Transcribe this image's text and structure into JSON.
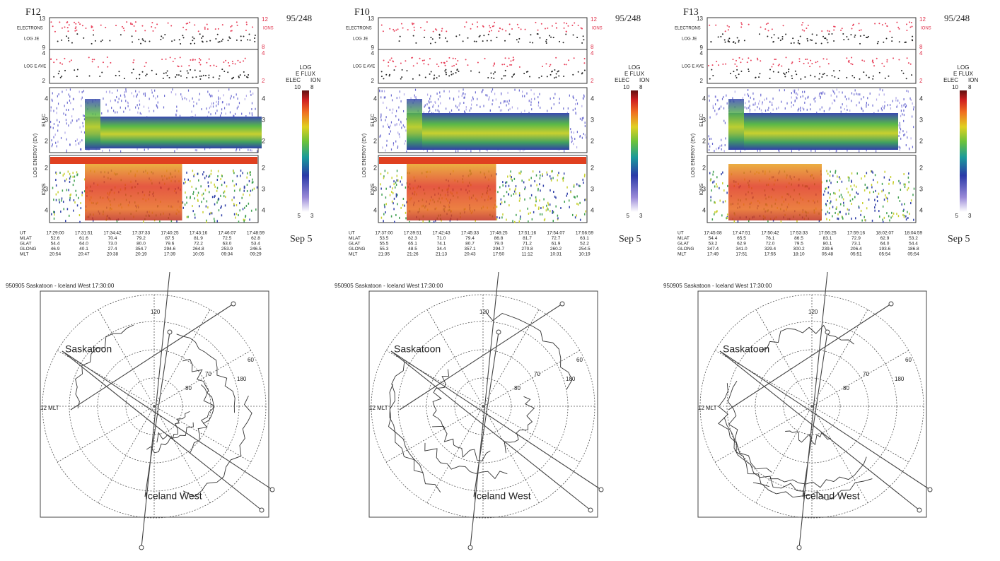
{
  "panels": [
    {
      "satellite": "F12",
      "day": "95/248",
      "date": "Sep 5",
      "flux": {
        "electrons": "ELECTRONS",
        "ions": "IONS",
        "log_je": "LOG JE",
        "log_e_ave": "LOG E AVE",
        "left_ticks": [
          "13",
          "9",
          "4",
          "2"
        ],
        "right_ticks": [
          "12",
          "8",
          "4",
          "2"
        ]
      },
      "spectrogram": {
        "axis_label": "LOG ENERGY (EV)",
        "elec": "ELEC",
        "ions": "IONS",
        "elec_ticks": [
          "4",
          "3",
          "2"
        ],
        "ion_ticks": [
          "2",
          "3",
          "4"
        ]
      },
      "colorbar": {
        "title": [
          "LOG",
          "E FLUX"
        ],
        "elec": "ELEC",
        "ion": "ION",
        "elec_range": [
          "10",
          "5"
        ],
        "ion_range": [
          "8",
          "3"
        ]
      },
      "table": {
        "rows": [
          {
            "label": "UT",
            "values": [
              "17:29:00",
              "17:31:51",
              "17:34:42",
              "17:37:33",
              "17:40:25",
              "17:43:16",
              "17:46:07",
              "17:48:59"
            ]
          },
          {
            "label": "MLAT",
            "values": [
              "52.6",
              "61.6",
              "70.4",
              "79.2",
              "87.5",
              "81.9",
              "72.5",
              "62.8"
            ]
          },
          {
            "label": "GLAT",
            "values": [
              "54.4",
              "64.0",
              "73.0",
              "80.0",
              "79.6",
              "72.2",
              "63.0",
              "53.4"
            ]
          },
          {
            "label": "GLONG",
            "values": [
              "46.9",
              "40.1",
              "27.4",
              "354.7",
              "294.6",
              "264.8",
              "253.9",
              "246.5"
            ]
          },
          {
            "label": "MLT",
            "values": [
              "20:54",
              "20:47",
              "20:38",
              "20:19",
              "17:39",
              "10:05",
              "09:34",
              "09:29"
            ]
          }
        ]
      },
      "map": {
        "title": "950905 Saskatoon - Iceland West 17:30:00",
        "start": "Saskatoon",
        "end": "Iceland West",
        "mlt": "12 MLT",
        "labels": [
          "120",
          "180",
          "60",
          "70",
          "80"
        ]
      }
    },
    {
      "satellite": "F10",
      "day": "95/248",
      "date": "Sep 5",
      "flux": {
        "electrons": "ELECTRONS",
        "ions": "IONS",
        "log_je": "LOG JE",
        "log_e_ave": "LOG E AVE",
        "left_ticks": [
          "13",
          "9",
          "4",
          "2"
        ],
        "right_ticks": [
          "12",
          "8",
          "4",
          "2"
        ]
      },
      "spectrogram": {
        "axis_label": "LOG ENERGY (EV)",
        "elec": "ELEC",
        "ions": "IONS",
        "elec_ticks": [
          "4",
          "3",
          "2"
        ],
        "ion_ticks": [
          "2",
          "3",
          "4"
        ]
      },
      "colorbar": {
        "title": [
          "LOG",
          "E FLUX"
        ],
        "elec": "ELEC",
        "ion": "ION",
        "elec_range": [
          "10",
          "5"
        ],
        "ion_range": [
          "8",
          "3"
        ]
      },
      "table": {
        "rows": [
          {
            "label": "UT",
            "values": [
              "17:37:00",
              "17:39:51",
              "17:42:43",
              "17:45:33",
              "17:48:25",
              "17:51:16",
              "17:54:07",
              "17:56:59"
            ]
          },
          {
            "label": "MLAT",
            "values": [
              "53.5",
              "62.3",
              "71.0",
              "79.4",
              "86.8",
              "81.7",
              "72.7",
              "63.1"
            ]
          },
          {
            "label": "GLAT",
            "values": [
              "55.5",
              "65.1",
              "74.1",
              "80.7",
              "79.0",
              "71.2",
              "61.9",
              "52.2"
            ]
          },
          {
            "label": "GLONG",
            "values": [
              "55.3",
              "48.5",
              "34.4",
              "357.1",
              "294.7",
              "270.8",
              "260.2",
              "254.5"
            ]
          },
          {
            "label": "MLT",
            "values": [
              "21:35",
              "21:26",
              "21:13",
              "20:43",
              "17:50",
              "11:12",
              "10:31",
              "10:19"
            ]
          }
        ]
      },
      "map": {
        "title": "950905 Saskatoon - Iceland West 17:30:00",
        "start": "Saskatoon",
        "end": "Iceland West",
        "mlt": "12 MLT",
        "labels": [
          "120",
          "180",
          "60",
          "70",
          "80"
        ]
      }
    },
    {
      "satellite": "F13",
      "day": "95/248",
      "date": "Sep 5",
      "flux": {
        "electrons": "ELECTRONS",
        "ions": "IONS",
        "log_je": "LOG JE",
        "log_e_ave": "LOG E AVE",
        "left_ticks": [
          "13",
          "9",
          "4",
          "2"
        ],
        "right_ticks": [
          "12",
          "8",
          "4",
          "2"
        ]
      },
      "spectrogram": {
        "axis_label": "LOG ENERGY (EV)",
        "elec": "ELEC",
        "ions": "IONS",
        "elec_ticks": [
          "4",
          "3",
          "2"
        ],
        "ion_ticks": [
          "2",
          "3",
          "4"
        ]
      },
      "colorbar": {
        "title": [
          "LOG",
          "E FLUX"
        ],
        "elec": "ELEC",
        "ion": "ION",
        "elec_range": [
          "10",
          "5"
        ],
        "ion_range": [
          "8",
          "3"
        ]
      },
      "table": {
        "rows": [
          {
            "label": "UT",
            "values": [
              "17:45:08",
              "17:47:51",
              "17:50:42",
              "17:53:33",
              "17:56:25",
              "17:59:16",
              "18:02:07",
              "18:04:59"
            ]
          },
          {
            "label": "MLAT",
            "values": [
              "54.4",
              "65.5",
              "76.1",
              "86.5",
              "83.1",
              "72.9",
              "62.9",
              "53.2"
            ]
          },
          {
            "label": "GLAT",
            "values": [
              "53.2",
              "62.9",
              "72.0",
              "79.5",
              "80.1",
              "73.1",
              "64.0",
              "54.4"
            ]
          },
          {
            "label": "GLONG",
            "values": [
              "347.4",
              "341.0",
              "329.4",
              "300.2",
              "239.6",
              "206.4",
              "193.6",
              "186.8"
            ]
          },
          {
            "label": "MLT",
            "values": [
              "17:49",
              "17:51",
              "17:55",
              "18:10",
              "05:48",
              "05:51",
              "05:54",
              "05:54"
            ]
          }
        ]
      },
      "map": {
        "title": "950905 Saskatoon - Iceland West 17:30:00",
        "start": "Saskatoon",
        "end": "Iceland West",
        "mlt": "12 MLT",
        "labels": [
          "120",
          "180",
          "60",
          "70",
          "80"
        ]
      }
    }
  ]
}
